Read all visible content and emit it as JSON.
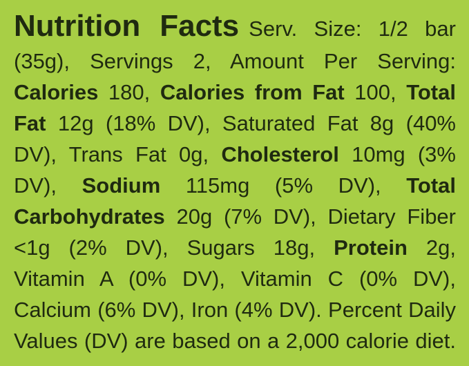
{
  "title": "Nutrition Facts",
  "lines": [
    [
      {
        "text": "Serv. Size: 1/2 bar",
        "bold": false
      }
    ],
    [
      {
        "text": "(35g), Servings 2, Amount Per Serving:",
        "bold": false
      }
    ],
    [
      {
        "text": "Calories",
        "bold": true
      },
      {
        "text": "180,",
        "bold": false
      },
      {
        "text": "Calories from Fat",
        "bold": true
      },
      {
        "text": "100,",
        "bold": false
      },
      {
        "text": "Total",
        "bold": true
      }
    ],
    [
      {
        "text": "Fat",
        "bold": true
      },
      {
        "text": "12g (18% DV), Saturated Fat 8g (40%",
        "bold": false
      }
    ],
    [
      {
        "text": "DV), Trans Fat 0g,",
        "bold": false
      },
      {
        "text": "Cholesterol",
        "bold": true
      },
      {
        "text": "10mg (3%",
        "bold": false
      }
    ],
    [
      {
        "text": "DV),",
        "bold": false
      },
      {
        "text": "Sodium",
        "bold": true
      },
      {
        "text": "115mg (5% DV),",
        "bold": false
      },
      {
        "text": "Total",
        "bold": true
      }
    ],
    [
      {
        "text": "Carbohydrates",
        "bold": true
      },
      {
        "text": "20g (7% DV), Dietary Fiber",
        "bold": false
      }
    ],
    [
      {
        "text": "<1g (2% DV), Sugars 18g,",
        "bold": false
      },
      {
        "text": "Protein",
        "bold": true
      },
      {
        "text": "2g,",
        "bold": false
      }
    ],
    [
      {
        "text": "Vitamin A (0% DV), Vitamin C (0% DV),",
        "bold": false
      }
    ],
    [
      {
        "text": "Calcium (6% DV), Iron (4% DV). Percent Daily",
        "bold": false
      }
    ],
    [
      {
        "text": "Values (DV) are based on a 2,000 calorie diet.",
        "bold": false
      }
    ]
  ]
}
